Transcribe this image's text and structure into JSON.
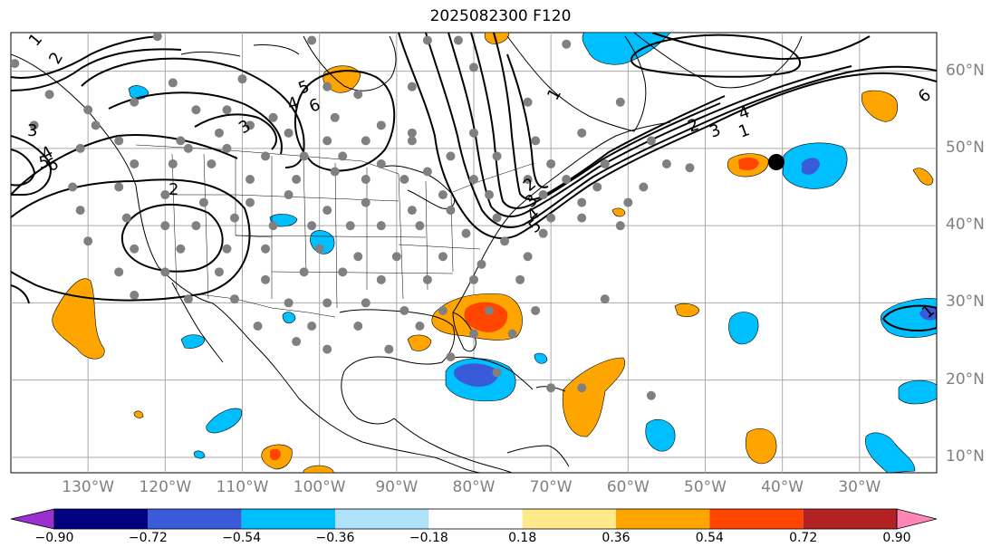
{
  "title": "2025082300 F120",
  "map": {
    "lon_range": [
      -140,
      -20
    ],
    "lat_range": [
      8,
      65
    ],
    "lat_labels": [
      "60°N",
      "50°N",
      "40°N",
      "30°N",
      "20°N",
      "10°N"
    ],
    "lat_values": [
      60,
      50,
      40,
      30,
      20,
      10
    ],
    "lon_labels": [
      "130°W",
      "120°W",
      "110°W",
      "100°W",
      "90°W",
      "80°W",
      "70°W",
      "60°W",
      "50°W",
      "40°W",
      "30°W"
    ],
    "lon_values": [
      -130,
      -120,
      -110,
      -100,
      -90,
      -80,
      -70,
      -60,
      -50,
      -40,
      -30
    ],
    "contour_labels": [
      "1",
      "2",
      "3",
      "4",
      "5",
      "6",
      "2",
      "3",
      "4",
      "5",
      "6",
      "1",
      "2",
      "3",
      "4",
      "1",
      "2",
      "3",
      "4",
      "5",
      "6",
      "1"
    ]
  },
  "colorbar": {
    "ticks": [
      "−0.90",
      "−0.72",
      "−0.54",
      "−0.36",
      "−0.18",
      "0.18",
      "0.36",
      "0.54",
      "0.72",
      "0.90"
    ],
    "colors": [
      "#9b30d0",
      "#000080",
      "#3a5bd9",
      "#00bfff",
      "#aee2fa",
      "#ffffff",
      "#ffe98a",
      "#ffa500",
      "#ff4500",
      "#b22222",
      "#ff85b5"
    ]
  },
  "colors": {
    "gray_dot": "#808080",
    "grid": "#aaaaaa",
    "orange": "#ffa500",
    "red": "#ff4500",
    "blue": "#00bfff",
    "darkblue": "#3a5bd9"
  }
}
